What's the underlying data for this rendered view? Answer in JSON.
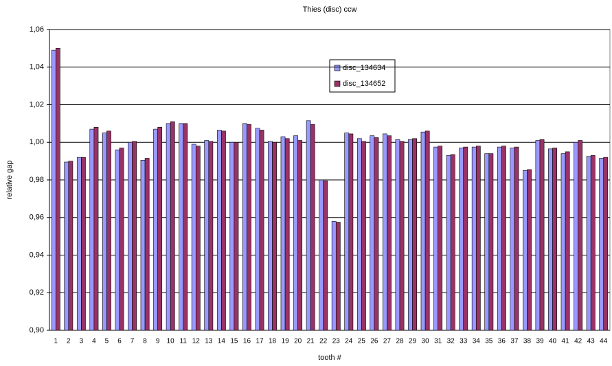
{
  "chart_data": {
    "type": "bar",
    "title": "Thies (disc) ccw",
    "x_label": "tooth #",
    "y_label": "relative gap",
    "categories": [
      "1",
      "2",
      "3",
      "4",
      "5",
      "6",
      "7",
      "8",
      "9",
      "10",
      "11",
      "12",
      "13",
      "14",
      "15",
      "16",
      "17",
      "18",
      "19",
      "20",
      "21",
      "22",
      "23",
      "24",
      "25",
      "26",
      "27",
      "28",
      "29",
      "30",
      "31",
      "32",
      "33",
      "34",
      "35",
      "36",
      "37",
      "38",
      "39",
      "40",
      "41",
      "42",
      "43",
      "44"
    ],
    "series": [
      {
        "name": "disc_134634",
        "color": "#9999ff",
        "values": [
          1.049,
          0.9895,
          0.992,
          1.007,
          1.005,
          0.996,
          1.0,
          0.9905,
          1.007,
          1.01,
          1.01,
          0.999,
          1.001,
          1.0065,
          1.0,
          1.01,
          1.0075,
          1.0005,
          1.003,
          1.0035,
          1.0115,
          0.98,
          0.958,
          1.005,
          1.002,
          1.0035,
          1.0045,
          1.0015,
          1.0015,
          1.0055,
          0.9975,
          0.993,
          0.997,
          0.9975,
          0.994,
          0.9975,
          0.997,
          0.985,
          1.001,
          0.9965,
          0.994,
          1.0,
          0.9925,
          0.9915
        ]
      },
      {
        "name": "disc_134652",
        "color": "#993366",
        "values": [
          1.05,
          0.99,
          0.992,
          1.008,
          1.006,
          0.997,
          1.0005,
          0.9915,
          1.008,
          1.011,
          1.01,
          0.998,
          1.0005,
          1.006,
          1.0,
          1.0095,
          1.0065,
          1.0,
          1.002,
          1.001,
          1.0095,
          0.9795,
          0.9575,
          1.0045,
          1.0005,
          1.0025,
          1.0035,
          1.0005,
          1.002,
          1.006,
          0.998,
          0.9935,
          0.9975,
          0.998,
          0.994,
          0.998,
          0.9975,
          0.9855,
          1.0015,
          0.997,
          0.995,
          1.001,
          0.993,
          0.992
        ]
      }
    ],
    "ylim": [
      0.9,
      1.06
    ],
    "yticks": [
      {
        "value": 0.9,
        "label": "0,90"
      },
      {
        "value": 0.92,
        "label": "0,92"
      },
      {
        "value": 0.94,
        "label": "0,94"
      },
      {
        "value": 0.96,
        "label": "0,96"
      },
      {
        "value": 0.98,
        "label": "0,98"
      },
      {
        "value": 1.0,
        "label": "1,00"
      },
      {
        "value": 1.02,
        "label": "1,02"
      },
      {
        "value": 1.04,
        "label": "1,04"
      },
      {
        "value": 1.06,
        "label": "1,06"
      }
    ],
    "grid": true
  }
}
